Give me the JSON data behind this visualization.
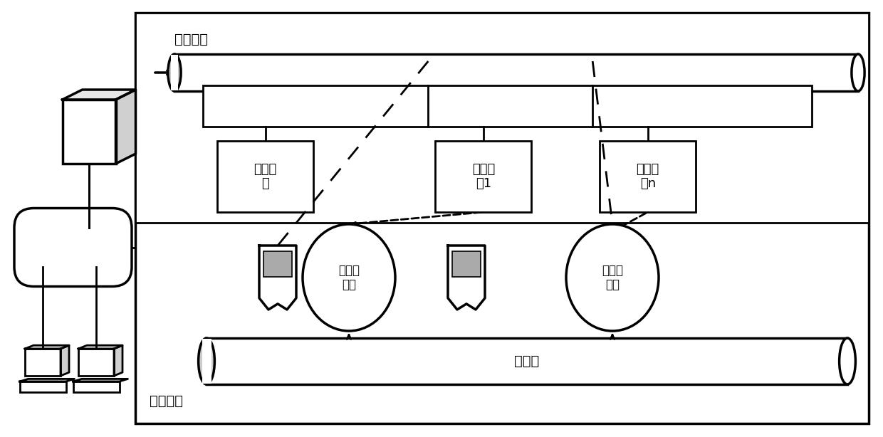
{
  "bg_color": "#ffffff",
  "control_module_label": "控制模块",
  "motion_module_label": "运动模块",
  "conveyor_label": "传送带",
  "main_controller_label": "主控制\n器",
  "slave1_label": "从控制\n器1",
  "slaven_label": "从控制\n器n",
  "encoder1_label": "电机编\n码器",
  "encoder2_label": "电机编\n码器",
  "lw": 2.0,
  "lw_thick": 2.5
}
